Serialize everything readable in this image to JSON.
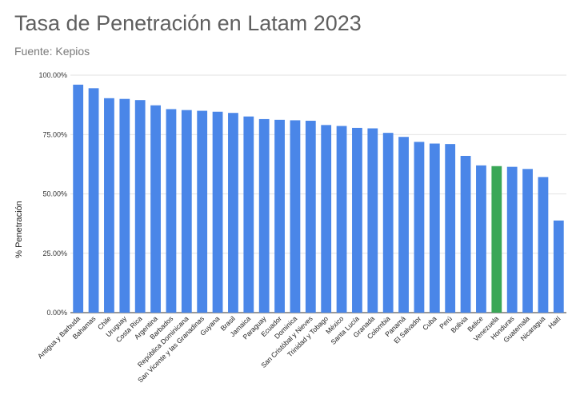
{
  "chart_data": {
    "type": "bar",
    "title": "Tasa de Penetración en Latam 2023",
    "subtitle": "Fuente: Kepios",
    "xlabel": "",
    "ylabel": "% Penetración",
    "ylim": [
      0,
      100
    ],
    "yticks": [
      {
        "value": 0,
        "label": "0.00%"
      },
      {
        "value": 25,
        "label": "25.00%"
      },
      {
        "value": 50,
        "label": "50.00%"
      },
      {
        "value": 75,
        "label": "75.00%"
      },
      {
        "value": 100,
        "label": "100.00%"
      }
    ],
    "grid": true,
    "default_color": "#4a86e8",
    "highlight_color": "#3aa757",
    "highlight_category": "Venezuela",
    "categories": [
      "Antigua y Barbuda",
      "Bahamas",
      "Chile",
      "Uruguay",
      "Costa Rica",
      "Argentina",
      "Barbados",
      "República Dominicana",
      "San Vicente y las Granadinas",
      "Guyana",
      "Brasil",
      "Jamaica",
      "Paraguay",
      "Ecuador",
      "Dominica",
      "San Cristóbal y Nieves",
      "Trinidad y Tobago",
      "México",
      "Santa Lucía",
      "Granada",
      "Colombia",
      "Panamá",
      "El Salvador",
      "Cuba",
      "Perú",
      "Bolivia",
      "Belice",
      "Venezuela",
      "Honduras",
      "Guatemala",
      "Nicaragua",
      "Haití"
    ],
    "values": [
      96,
      94.5,
      90.3,
      90,
      89.5,
      87.3,
      85.7,
      85.3,
      85,
      84.6,
      84.1,
      82.6,
      81.5,
      81.2,
      81,
      80.8,
      79,
      78.6,
      77.8,
      77.6,
      75.7,
      74,
      71.9,
      71.2,
      71,
      66,
      62,
      61.7,
      61.4,
      60.5,
      57.1,
      38.8
    ]
  }
}
